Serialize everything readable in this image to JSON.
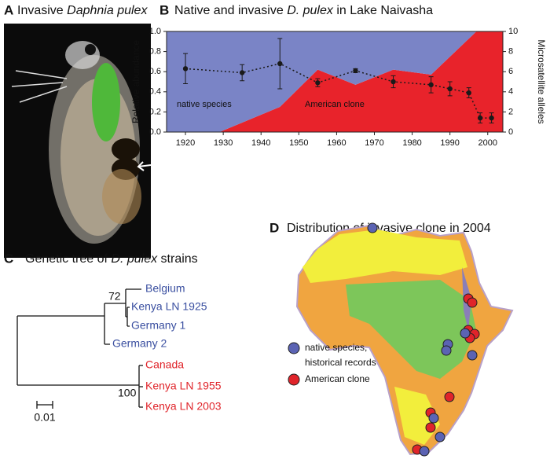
{
  "panels": {
    "a": {
      "label": "A",
      "title": [
        "Invasive ",
        "Daphnia pulex"
      ]
    },
    "b": {
      "label": "B"
    },
    "c": {
      "label": "C",
      "title": [
        "Genetic tree of ",
        "D. pulex",
        " strains"
      ],
      "leaves": [
        "Belgium",
        "Kenya LN 1925",
        "Germany 1",
        "Germany 2",
        "Canada",
        "Kenya LN 1955",
        "Kenya LN 2003"
      ],
      "bootstrap": [
        72,
        100
      ],
      "scale": 0.01
    },
    "d": {
      "label": "D",
      "title": "Distribution of invasive clone in 2004",
      "legend": [
        "native species,",
        "historical records",
        "American clone"
      ]
    }
  },
  "chart_data": {
    "type": "area",
    "title": [
      "Native and invasive ",
      "D. pulex",
      " in Lake Naivasha"
    ],
    "ylabel": "Relative abundance",
    "y2label": "Microsatellite alleles",
    "xlim": [
      1915,
      2004
    ],
    "xticks": [
      1920,
      1930,
      1940,
      1950,
      1960,
      1970,
      1980,
      1990,
      2000
    ],
    "ylim": [
      0,
      1
    ],
    "yticks": [
      {
        "value": 0,
        "label": "0.0"
      },
      {
        "value": 0.2,
        "label": "0.2"
      },
      {
        "value": 0.4,
        "label": "0.4"
      },
      {
        "value": 0.6,
        "label": "0.6"
      },
      {
        "value": 0.8,
        "label": "0.8"
      },
      {
        "value": 1,
        "label": "1.0"
      }
    ],
    "y2lim": [
      0,
      10
    ],
    "y2ticks": [
      0,
      2,
      4,
      6,
      8,
      10
    ],
    "series": [
      {
        "name": "American clone",
        "type": "area",
        "color": "#e8232b",
        "x": [
          1915,
          1929,
          1945,
          1955,
          1965,
          1975,
          1985,
          1997,
          2004
        ],
        "values": [
          0,
          0,
          0.25,
          0.62,
          0.47,
          0.62,
          0.57,
          1,
          1
        ]
      },
      {
        "name": "native species",
        "type": "area",
        "color": "#7a84c6",
        "x": [
          1915,
          1929,
          1945,
          1955,
          1965,
          1975,
          1985,
          1997,
          2004
        ],
        "values": [
          1,
          1,
          0.75,
          0.38,
          0.53,
          0.38,
          0.43,
          0,
          0
        ]
      },
      {
        "type": "line",
        "axis": "y2",
        "color": "#1a1a1a",
        "x": [
          1920,
          1935,
          1945,
          1955,
          1965,
          1975,
          1985,
          1990,
          1995,
          1998,
          2001
        ],
        "values": [
          6.3,
          5.9,
          6.8,
          4.9,
          6.1,
          5.0,
          4.7,
          4.3,
          3.9,
          1.4,
          1.4
        ],
        "errors": [
          1.5,
          0.8,
          2.5,
          0.4,
          0.2,
          0.6,
          0.8,
          0.7,
          0.5,
          0.5,
          0.5
        ]
      }
    ]
  }
}
